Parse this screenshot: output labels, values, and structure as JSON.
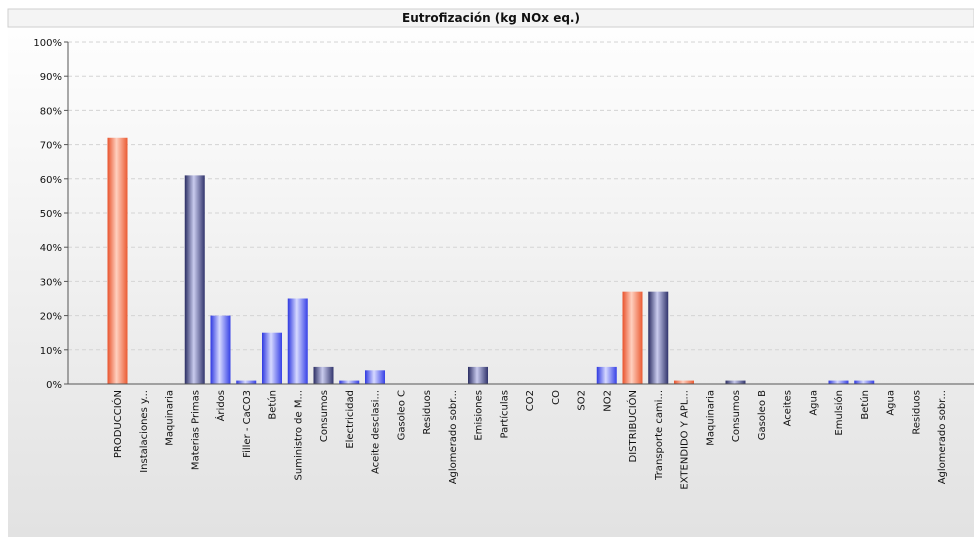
{
  "chart_data": {
    "type": "bar",
    "title": "Eutrofización (kg NOx eq.)",
    "xlabel": "",
    "ylabel": "",
    "ylim": [
      0,
      100
    ],
    "yticks": [
      "0%",
      "10%",
      "20%",
      "30%",
      "40%",
      "50%",
      "60%",
      "70%",
      "80%",
      "90%",
      "100%"
    ],
    "grid": true,
    "legend": "none",
    "colors": {
      "orange": "#f0663f",
      "navy": "#3c3f7c",
      "blue": "#4a56ec"
    },
    "categories": [
      "PRODUCCIÓN",
      "Instalaciones y...",
      "Maquinaria",
      "Materias Primas",
      "Áridos",
      "Filler - CaCO3",
      "Betún",
      "Suministro de M...",
      "Consumos",
      "Electricidad",
      "Aceite desclasi...",
      "Gasoleo C",
      "Residuos",
      "Aglomerado sobr...",
      "Emisiones",
      "Partículas",
      "CO2",
      "CO",
      "SO2",
      "NO2",
      "DISTRIBUCIÓN",
      "Transporte cami...",
      "EXTENDIDO Y APL...",
      "Maquinaria",
      "Consumos",
      "Gasoleo B",
      "Aceites",
      "Agua",
      "Emulsión",
      "Betún",
      "Agua",
      "Residuos",
      "Aglomerado sobr..."
    ],
    "values": [
      72,
      0,
      0,
      61,
      20,
      1,
      15,
      25,
      5,
      1,
      4,
      0,
      0,
      0,
      5,
      0,
      0,
      0,
      0,
      5,
      27,
      27,
      1,
      0,
      1,
      0,
      0,
      0,
      1,
      1,
      0,
      0,
      0
    ],
    "bar_colors": [
      "orange",
      "navy",
      "navy",
      "navy",
      "blue",
      "blue",
      "blue",
      "blue",
      "navy",
      "blue",
      "blue",
      "blue",
      "blue",
      "blue",
      "navy",
      "blue",
      "blue",
      "blue",
      "blue",
      "blue",
      "orange",
      "navy",
      "orange",
      "navy",
      "navy",
      "navy",
      "navy",
      "navy",
      "blue",
      "blue",
      "blue",
      "blue",
      "blue"
    ]
  }
}
